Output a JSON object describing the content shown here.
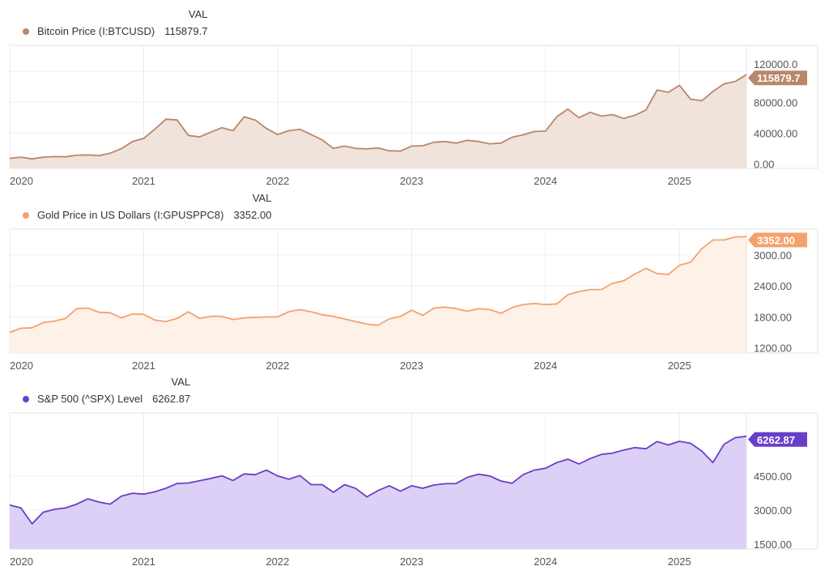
{
  "chart_data": [
    {
      "type": "area",
      "legend_header": "VAL",
      "series_name": "Bitcoin Price (I:BTCUSD)",
      "last_value_label": "115879.7",
      "color": "#b9876a",
      "fill": "#efe3dc",
      "x": [
        "2020-01",
        "2020-02",
        "2020-03",
        "2020-04",
        "2020-05",
        "2020-06",
        "2020-07",
        "2020-08",
        "2020-09",
        "2020-10",
        "2020-11",
        "2020-12",
        "2021-01",
        "2021-02",
        "2021-03",
        "2021-04",
        "2021-05",
        "2021-06",
        "2021-07",
        "2021-08",
        "2021-09",
        "2021-10",
        "2021-11",
        "2021-12",
        "2022-01",
        "2022-02",
        "2022-03",
        "2022-04",
        "2022-05",
        "2022-06",
        "2022-07",
        "2022-08",
        "2022-09",
        "2022-10",
        "2022-11",
        "2022-12",
        "2023-01",
        "2023-02",
        "2023-03",
        "2023-04",
        "2023-05",
        "2023-06",
        "2023-07",
        "2023-08",
        "2023-09",
        "2023-10",
        "2023-11",
        "2023-12",
        "2024-01",
        "2024-02",
        "2024-03",
        "2024-04",
        "2024-05",
        "2024-06",
        "2024-07",
        "2024-08",
        "2024-09",
        "2024-10",
        "2024-11",
        "2024-12",
        "2025-01",
        "2025-02",
        "2025-03",
        "2025-04",
        "2025-05",
        "2025-06",
        "2025-07"
      ],
      "values": [
        7200,
        8600,
        6400,
        8600,
        9400,
        9100,
        11300,
        11600,
        10700,
        13800,
        19700,
        29000,
        33000,
        45000,
        58000,
        57000,
        37000,
        35000,
        41000,
        47000,
        43000,
        61000,
        57000,
        46000,
        38000,
        43000,
        45000,
        38000,
        31000,
        20000,
        23000,
        20000,
        19400,
        20500,
        17000,
        16500,
        23000,
        23500,
        28000,
        29000,
        27000,
        30500,
        29000,
        26000,
        27000,
        34500,
        37700,
        42000,
        42500,
        61000,
        71000,
        60000,
        67000,
        62000,
        64000,
        59000,
        63000,
        70000,
        96000,
        93000,
        102000,
        84000,
        82000,
        94000,
        104000,
        107000,
        115879.7
      ],
      "ylim": [
        -6000,
        154000
      ],
      "yticks": [
        0,
        40000,
        80000,
        120000
      ],
      "ytick_labels": [
        "0.00",
        "40000.00",
        "80000.00",
        "120000.0"
      ],
      "xticks": [
        "2020",
        "2021",
        "2022",
        "2023",
        "2024",
        "2025"
      ],
      "grid": true
    },
    {
      "type": "area",
      "legend_header": "VAL",
      "series_name": "Gold Price in US Dollars (I:GPUSPPC8)",
      "last_value_label": "3352.00",
      "color": "#f4a26c",
      "fill": "#fdf1e8",
      "x": [
        "2020-01",
        "2020-02",
        "2020-03",
        "2020-04",
        "2020-05",
        "2020-06",
        "2020-07",
        "2020-08",
        "2020-09",
        "2020-10",
        "2020-11",
        "2020-12",
        "2021-01",
        "2021-02",
        "2021-03",
        "2021-04",
        "2021-05",
        "2021-06",
        "2021-07",
        "2021-08",
        "2021-09",
        "2021-10",
        "2021-11",
        "2021-12",
        "2022-01",
        "2022-02",
        "2022-03",
        "2022-04",
        "2022-05",
        "2022-06",
        "2022-07",
        "2022-08",
        "2022-09",
        "2022-10",
        "2022-11",
        "2022-12",
        "2023-01",
        "2023-02",
        "2023-03",
        "2023-04",
        "2023-05",
        "2023-06",
        "2023-07",
        "2023-08",
        "2023-09",
        "2023-10",
        "2023-11",
        "2023-12",
        "2024-01",
        "2024-02",
        "2024-03",
        "2024-04",
        "2024-05",
        "2024-06",
        "2024-07",
        "2024-08",
        "2024-09",
        "2024-10",
        "2024-11",
        "2024-12",
        "2025-01",
        "2025-02",
        "2025-03",
        "2025-04",
        "2025-05",
        "2025-06",
        "2025-07"
      ],
      "values": [
        1500,
        1580,
        1590,
        1690,
        1720,
        1770,
        1960,
        1970,
        1890,
        1880,
        1780,
        1860,
        1850,
        1740,
        1710,
        1770,
        1900,
        1770,
        1810,
        1810,
        1750,
        1780,
        1790,
        1800,
        1800,
        1900,
        1940,
        1900,
        1840,
        1810,
        1760,
        1710,
        1660,
        1640,
        1760,
        1810,
        1930,
        1830,
        1970,
        1990,
        1960,
        1910,
        1960,
        1940,
        1870,
        1980,
        2040,
        2060,
        2040,
        2050,
        2230,
        2290,
        2330,
        2330,
        2450,
        2500,
        2630,
        2740,
        2640,
        2620,
        2800,
        2860,
        3120,
        3290,
        3290,
        3350,
        3352
      ],
      "ylim": [
        1100,
        3500
      ],
      "yticks": [
        1200,
        1800,
        2400,
        3000
      ],
      "ytick_labels": [
        "1200.00",
        "1800.00",
        "2400.00",
        "3000.00"
      ],
      "xticks": [
        "2020",
        "2021",
        "2022",
        "2023",
        "2024",
        "2025"
      ],
      "grid": true
    },
    {
      "type": "area",
      "legend_header": "VAL",
      "series_name": "S&P 500 (^SPX) Level",
      "last_value_label": "6262.87",
      "color": "#6a3fc8",
      "fill": "#dcd0f6",
      "x": [
        "2020-01",
        "2020-02",
        "2020-03",
        "2020-04",
        "2020-05",
        "2020-06",
        "2020-07",
        "2020-08",
        "2020-09",
        "2020-10",
        "2020-11",
        "2020-12",
        "2021-01",
        "2021-02",
        "2021-03",
        "2021-04",
        "2021-05",
        "2021-06",
        "2021-07",
        "2021-08",
        "2021-09",
        "2021-10",
        "2021-11",
        "2021-12",
        "2022-01",
        "2022-02",
        "2022-03",
        "2022-04",
        "2022-05",
        "2022-06",
        "2022-07",
        "2022-08",
        "2022-09",
        "2022-10",
        "2022-11",
        "2022-12",
        "2023-01",
        "2023-02",
        "2023-03",
        "2023-04",
        "2023-05",
        "2023-06",
        "2023-07",
        "2023-08",
        "2023-09",
        "2023-10",
        "2023-11",
        "2023-12",
        "2024-01",
        "2024-02",
        "2024-03",
        "2024-04",
        "2024-05",
        "2024-06",
        "2024-07",
        "2024-08",
        "2024-09",
        "2024-10",
        "2024-11",
        "2024-12",
        "2025-01",
        "2025-02",
        "2025-03",
        "2025-04",
        "2025-05",
        "2025-06",
        "2025-07"
      ],
      "values": [
        3230,
        3100,
        2400,
        2910,
        3040,
        3100,
        3270,
        3500,
        3360,
        3270,
        3620,
        3750,
        3710,
        3810,
        3970,
        4180,
        4200,
        4300,
        4400,
        4520,
        4310,
        4600,
        4570,
        4770,
        4510,
        4370,
        4530,
        4130,
        4130,
        3790,
        4130,
        3960,
        3590,
        3870,
        4080,
        3840,
        4080,
        3970,
        4110,
        4170,
        4180,
        4450,
        4590,
        4510,
        4290,
        4190,
        4570,
        4770,
        4850,
        5100,
        5250,
        5040,
        5280,
        5460,
        5520,
        5650,
        5760,
        5710,
        6030,
        5880,
        6040,
        5950,
        5610,
        5100,
        5910,
        6200,
        6262.87
      ],
      "ylim": [
        1290,
        7290
      ],
      "yticks": [
        1500,
        3000,
        4500
      ],
      "ytick_labels": [
        "1500.00",
        "3000.00",
        "4500.00"
      ],
      "xticks": [
        "2020",
        "2021",
        "2022",
        "2023",
        "2024",
        "2025"
      ],
      "grid": true
    }
  ]
}
